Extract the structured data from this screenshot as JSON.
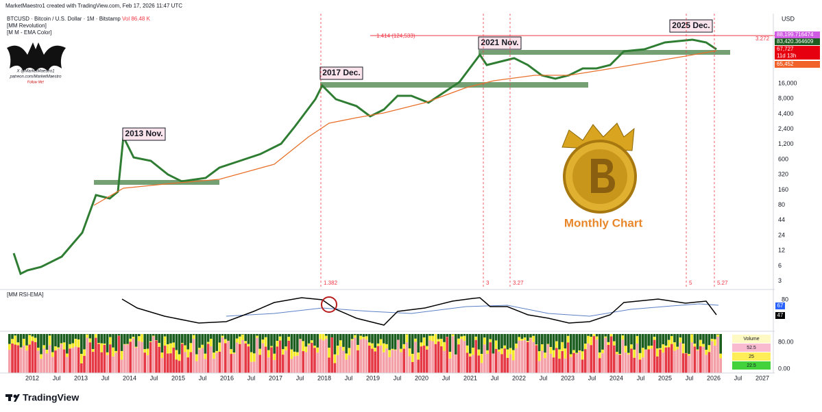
{
  "header": {
    "created": "MarketMaestro1 created with TradingView.com, Feb 17, 2026 11:47 UTC",
    "symbol": "BTCUSD · Bitcoin / U.S. Dollar · 1M · Bitstamp",
    "volume": "Vol 86.48 K",
    "indicator1": "[MM Revolution]",
    "indicator2": "[M M - EMA Color]"
  },
  "logo": {
    "line1": "X @MarketMaestro1",
    "line2": "patreon.com/MarketMaestro",
    "line3": "Follow Me!"
  },
  "annotations": [
    "2013 Nov.",
    "2017 Dec.",
    "2021 Nov.",
    "2025 Dec."
  ],
  "fib": {
    "label": "1.414 (124,533)",
    "right": "3.272"
  },
  "cycle_labels": [
    "1.382",
    "3",
    "3.27",
    "5",
    "5.27"
  ],
  "center_text": "Monthly Chart",
  "price_axis": {
    "unit": "USD",
    "labels": [
      "16,000",
      "8,000",
      "4,400",
      "2,400",
      "1,200",
      "600",
      "320",
      "160",
      "80",
      "44",
      "24",
      "12",
      "6",
      "3"
    ]
  },
  "price_tags": [
    "88,199.716474",
    "83,420.364609",
    "67,727",
    "11d 13h",
    "65,452"
  ],
  "rsi_panel": {
    "title": "[MM RSI-EMA]",
    "axis": "80",
    "tag1": "67",
    "tag2": "47"
  },
  "volume_panel": {
    "axis_top": "80.00",
    "axis_bottom": "0.00",
    "legend": [
      "Volume",
      "52.5",
      "25",
      "22.5"
    ]
  },
  "time_axis": [
    "2012",
    "Jul",
    "2013",
    "Jul",
    "2014",
    "Jul",
    "2015",
    "Jul",
    "2016",
    "Jul",
    "2017",
    "Jul",
    "2018",
    "Jul",
    "2019",
    "Jul",
    "2020",
    "Jul",
    "2021",
    "Jul",
    "2022",
    "Jul",
    "2023",
    "Jul",
    "2024",
    "Jul",
    "2025",
    "Jul",
    "2026",
    "Jul",
    "2027"
  ],
  "footer": "TradingView"
}
